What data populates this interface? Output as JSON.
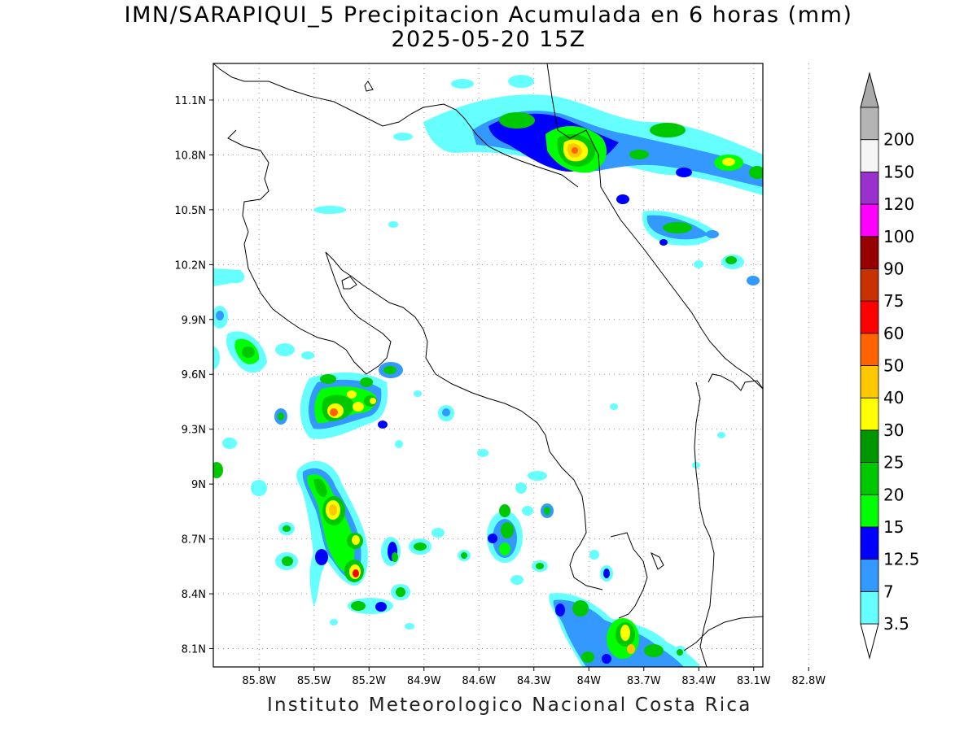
{
  "title_line1": "IMN/SARAPIQUI_5 Precipitacion Acumulada en 6 horas (mm)",
  "title_line2": "2025-05-20 15Z",
  "footer": "Instituto Meteorologico Nacional Costa Rica",
  "map": {
    "lon_range": [
      -86.05,
      -83.05
    ],
    "lat_range": [
      8.0,
      11.3
    ],
    "lon_ticks": [
      {
        "value": -85.8,
        "label": "85.8W"
      },
      {
        "value": -85.5,
        "label": "85.5W"
      },
      {
        "value": -85.2,
        "label": "85.2W"
      },
      {
        "value": -84.9,
        "label": "84.9W"
      },
      {
        "value": -84.6,
        "label": "84.6W"
      },
      {
        "value": -84.3,
        "label": "84.3W"
      },
      {
        "value": -84.0,
        "label": "84W"
      },
      {
        "value": -83.7,
        "label": "83.7W"
      },
      {
        "value": -83.4,
        "label": "83.4W"
      },
      {
        "value": -83.1,
        "label": "83.1W"
      },
      {
        "value": -82.8,
        "label": "82.8W"
      }
    ],
    "lat_ticks": [
      {
        "value": 8.1,
        "label": "8.1N"
      },
      {
        "value": 8.4,
        "label": "8.4N"
      },
      {
        "value": 8.7,
        "label": "8.7N"
      },
      {
        "value": 9.0,
        "label": "9N"
      },
      {
        "value": 9.3,
        "label": "9.3N"
      },
      {
        "value": 9.6,
        "label": "9.6N"
      },
      {
        "value": 9.9,
        "label": "9.9N"
      },
      {
        "value": 10.2,
        "label": "10.2N"
      },
      {
        "value": 10.5,
        "label": "10.5N"
      },
      {
        "value": 10.8,
        "label": "10.8N"
      },
      {
        "value": 11.1,
        "label": "11.1N"
      }
    ],
    "grid": true
  },
  "colorbar": {
    "levels": [
      {
        "label": "3.5",
        "color": "#66ffff"
      },
      {
        "label": "7",
        "color": "#3399ff"
      },
      {
        "label": "12.5",
        "color": "#0000ff"
      },
      {
        "label": "15",
        "color": "#00ff00"
      },
      {
        "label": "20",
        "color": "#00c800"
      },
      {
        "label": "25",
        "color": "#009600"
      },
      {
        "label": "30",
        "color": "#ffff00"
      },
      {
        "label": "40",
        "color": "#ffc800"
      },
      {
        "label": "50",
        "color": "#ff6400"
      },
      {
        "label": "60",
        "color": "#ff0000"
      },
      {
        "label": "75",
        "color": "#c83200"
      },
      {
        "label": "90",
        "color": "#960000"
      },
      {
        "label": "100",
        "color": "#ff00ff"
      },
      {
        "label": "120",
        "color": "#9932cc"
      },
      {
        "label": "150",
        "color": "#f5f5f5"
      },
      {
        "label": "200",
        "color": "#b4b4b4"
      }
    ],
    "under_color": "#ffffff",
    "over_color": "#aaaaaa"
  }
}
